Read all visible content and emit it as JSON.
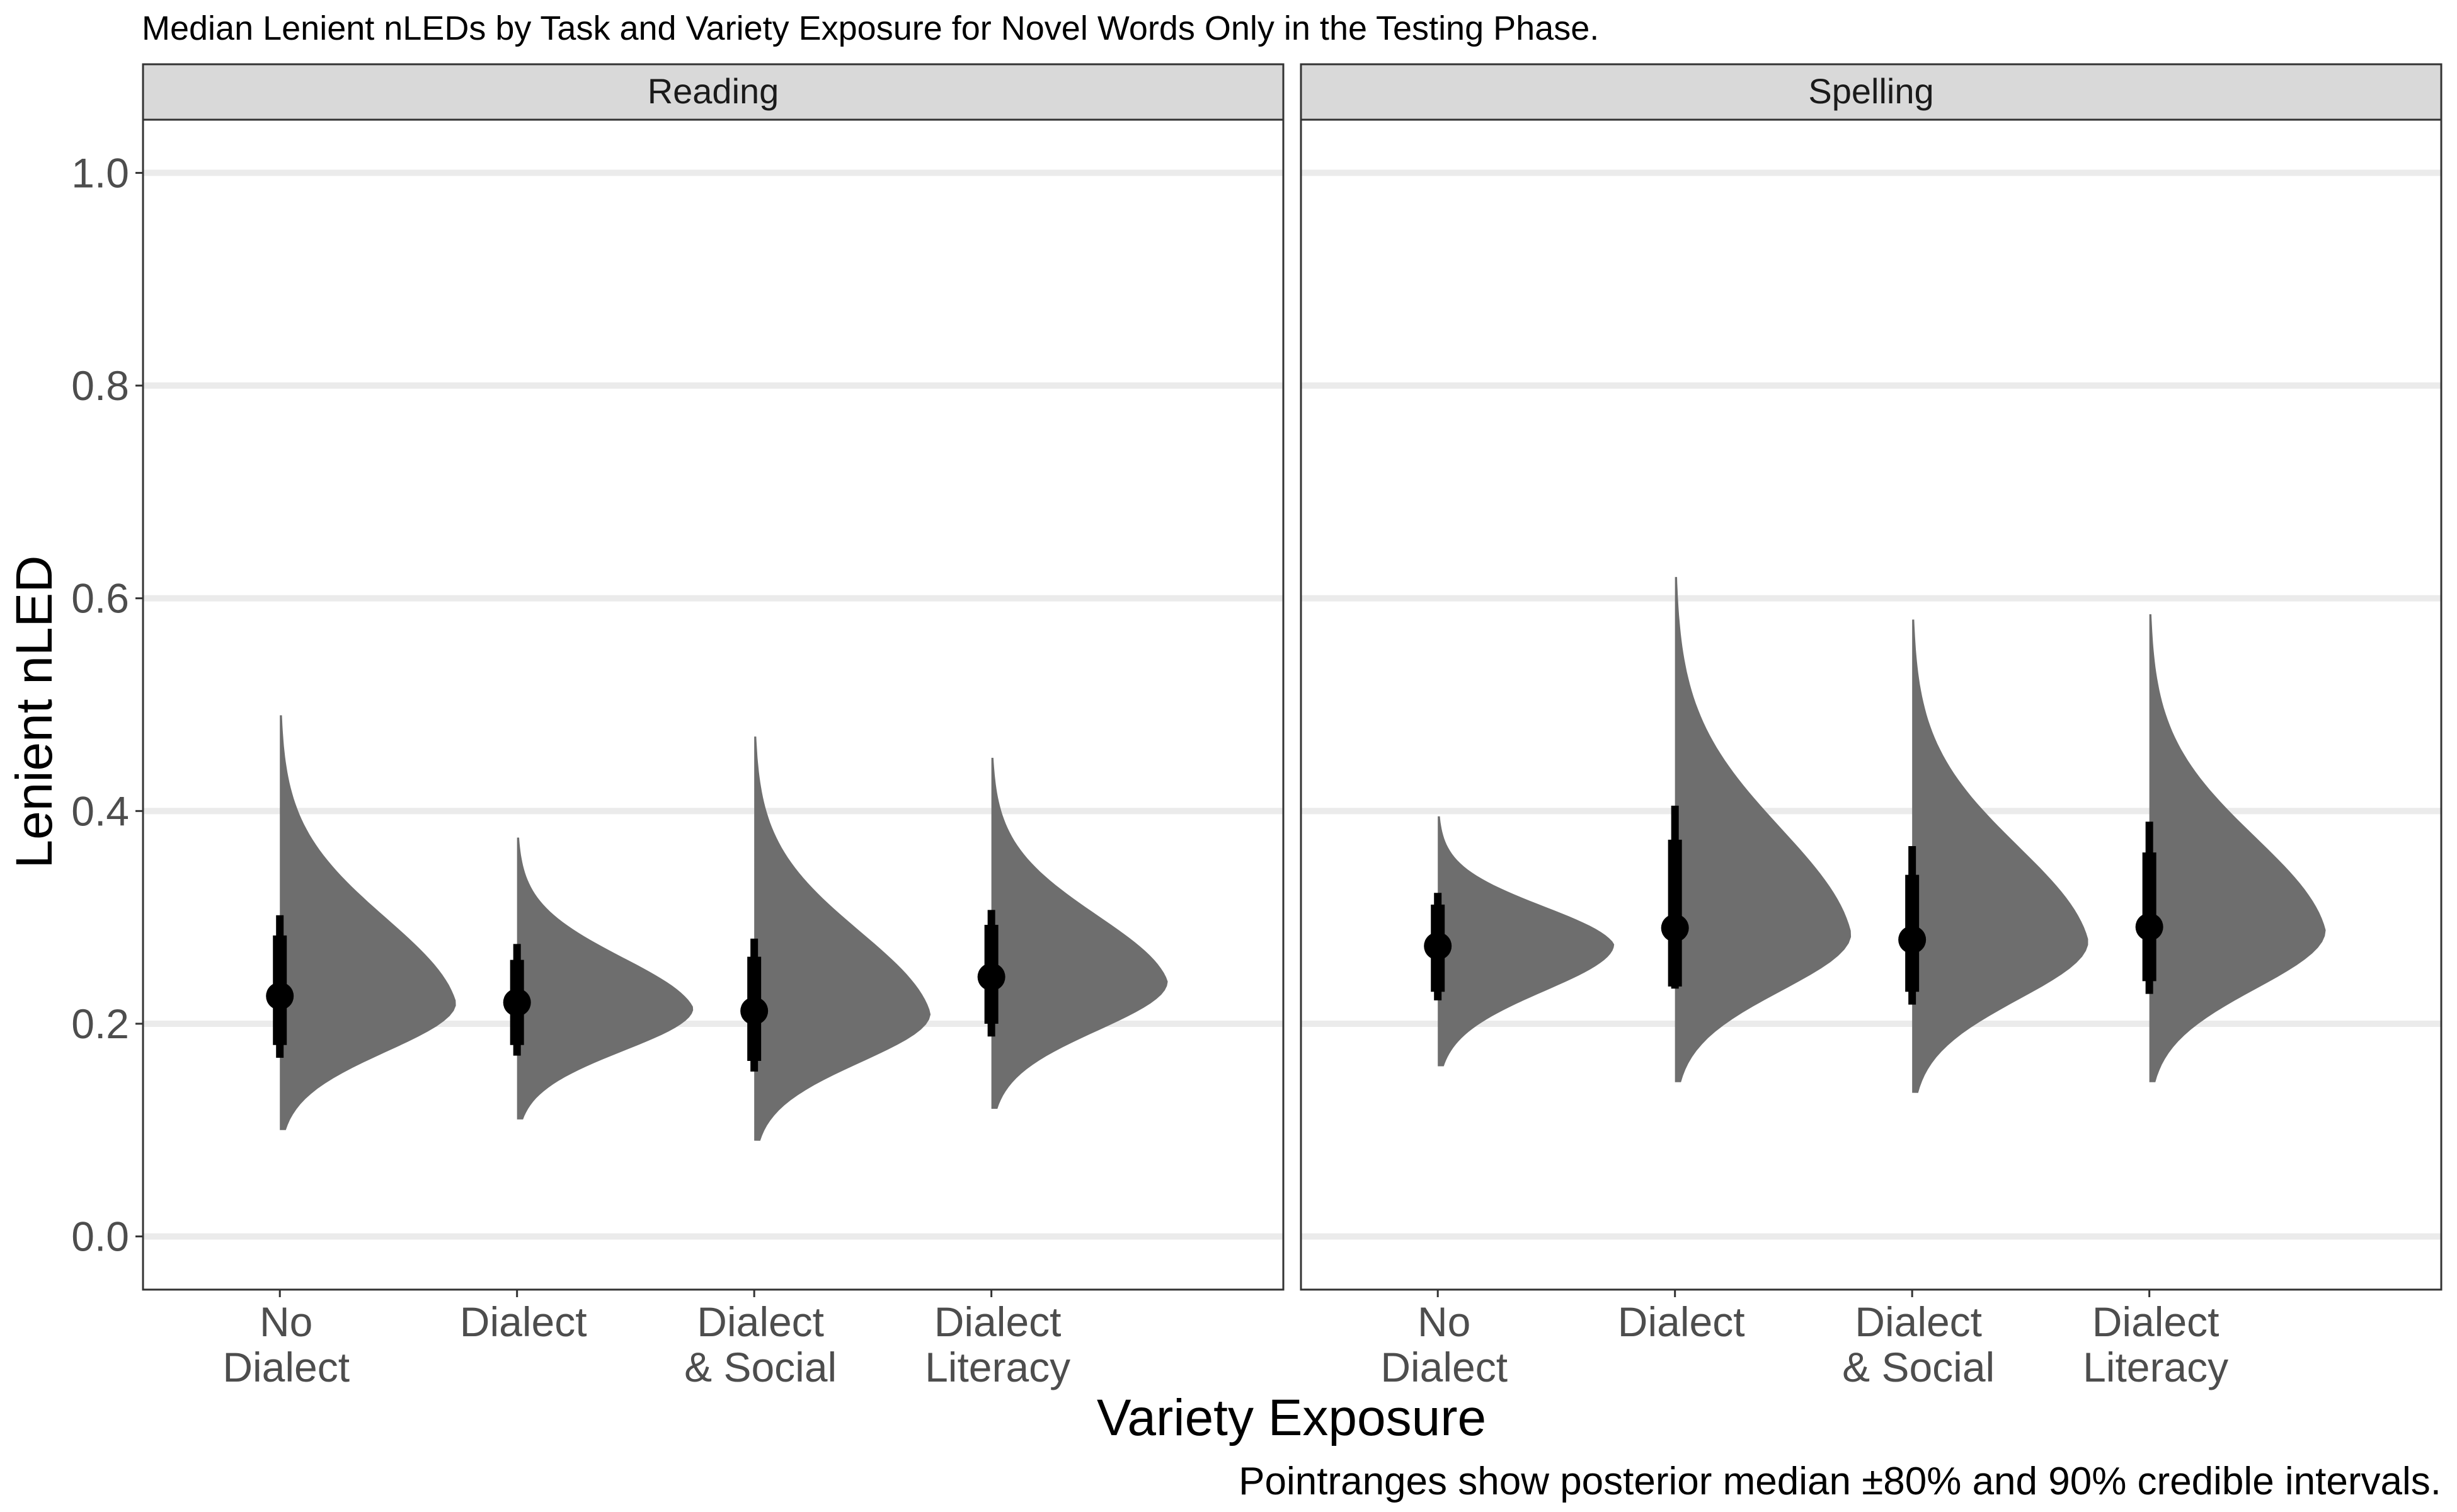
{
  "title": "Median Lenient nLEDs by Task and Variety Exposure for Novel Words Only in the Testing Phase.",
  "caption": "Pointranges show posterior median ±80% and 90% credible intervals.",
  "chart_data": {
    "type": "halfeye",
    "title": "Median Lenient nLEDs by Task and Variety Exposure for Novel Words Only in the Testing Phase.",
    "xlabel": "Variety Exposure",
    "ylabel": "Lenient nLED",
    "ylim": [
      -0.05,
      1.05
    ],
    "yticks": [
      0.0,
      0.2,
      0.4,
      0.6,
      0.8,
      1.0
    ],
    "ytick_labels": [
      "0.0",
      "0.2",
      "0.4",
      "0.6",
      "0.8",
      "1.0"
    ],
    "grid": true,
    "categories": [
      [
        "No",
        "Dialect"
      ],
      [
        "Dialect"
      ],
      [
        "Dialect",
        "& Social"
      ],
      [
        "Dialect",
        "Literacy"
      ]
    ],
    "panels": [
      {
        "name": "Reading",
        "groups": [
          {
            "median": 0.226,
            "q80": [
              0.18,
              0.283
            ],
            "q90": [
              0.168,
              0.302
            ],
            "mode": 0.22,
            "min": 0.1,
            "max": 0.49
          },
          {
            "median": 0.22,
            "q80": [
              0.18,
              0.26
            ],
            "q90": [
              0.17,
              0.275
            ],
            "mode": 0.215,
            "min": 0.11,
            "max": 0.375
          },
          {
            "median": 0.212,
            "q80": [
              0.165,
              0.263
            ],
            "q90": [
              0.155,
              0.28
            ],
            "mode": 0.21,
            "min": 0.09,
            "max": 0.47
          },
          {
            "median": 0.244,
            "q80": [
              0.2,
              0.293
            ],
            "q90": [
              0.188,
              0.307
            ],
            "mode": 0.24,
            "min": 0.12,
            "max": 0.45
          }
        ]
      },
      {
        "name": "Spelling",
        "groups": [
          {
            "median": 0.273,
            "q80": [
              0.23,
              0.312
            ],
            "q90": [
              0.222,
              0.323
            ],
            "mode": 0.275,
            "min": 0.16,
            "max": 0.395
          },
          {
            "median": 0.29,
            "q80": [
              0.235,
              0.373
            ],
            "q90": [
              0.233,
              0.405
            ],
            "mode": 0.285,
            "min": 0.145,
            "max": 0.62
          },
          {
            "median": 0.279,
            "q80": [
              0.23,
              0.34
            ],
            "q90": [
              0.218,
              0.367
            ],
            "mode": 0.278,
            "min": 0.135,
            "max": 0.58
          },
          {
            "median": 0.291,
            "q80": [
              0.24,
              0.361
            ],
            "q90": [
              0.228,
              0.39
            ],
            "mode": 0.288,
            "min": 0.145,
            "max": 0.585
          }
        ]
      }
    ]
  }
}
